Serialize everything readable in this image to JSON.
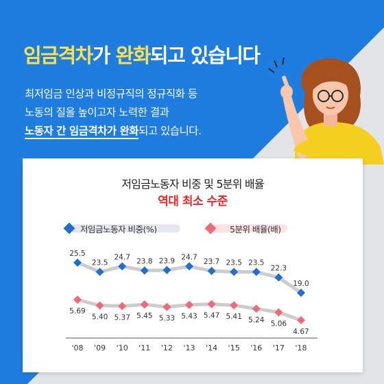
{
  "headline": {
    "part1": "임금격차",
    "part2": "가 ",
    "part3": "완화",
    "part4": "되고 있습니다"
  },
  "description": {
    "line1": "최저임금 인상과 비정규직의 정규직화 등",
    "line2": "노동의 질을 높이고자 노력한 결과",
    "line3_strong": "노동자 간 임금격차가 완화",
    "line3_rest": "되고 있습니다."
  },
  "colors": {
    "background_blue": "#1f7de0",
    "background_gray": "#e3e4e8",
    "highlight_yellow": "#ffe14d",
    "series1": "#1e6fd0",
    "series2": "#ef6a74",
    "line_gray": "#cccccc",
    "subtitle_red": "#e8272a"
  },
  "chart_data": {
    "type": "line",
    "title": "저임금노동자 비중 및 5분위 배율",
    "subtitle": "역대 최소 수준",
    "x": [
      "'08",
      "'09",
      "'10",
      "'11",
      "'12",
      "'13",
      "'14",
      "'15",
      "'16",
      "'17",
      "'18"
    ],
    "series": [
      {
        "name": "저임금노동자 비중(%)",
        "marker": "diamond",
        "color": "#1e6fd0",
        "values": [
          25.5,
          23.5,
          24.7,
          23.8,
          23.9,
          24.7,
          23.7,
          23.5,
          23.5,
          22.3,
          19.0
        ],
        "labels": [
          "25.5",
          "23.5",
          "24.7",
          "23.8",
          "23.9",
          "24.7",
          "23.7",
          "23.5",
          "23.5",
          "22.3",
          "19.0"
        ]
      },
      {
        "name": "5분위 배율(배)",
        "marker": "diamond",
        "color": "#ef6a74",
        "values": [
          5.69,
          5.4,
          5.37,
          5.45,
          5.33,
          5.43,
          5.47,
          5.41,
          5.24,
          5.06,
          4.67
        ],
        "labels": [
          "5.69",
          "5.40",
          "5.37",
          "5.45",
          "5.33",
          "5.43",
          "5.47",
          "5.41",
          "5.24",
          "5.06",
          "4.67"
        ]
      }
    ],
    "legend_position": "top",
    "grid": false
  }
}
